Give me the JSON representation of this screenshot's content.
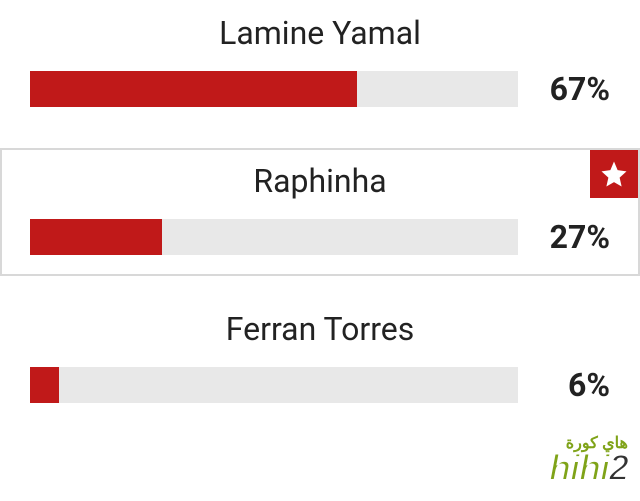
{
  "poll": {
    "bar_color": "#c01919",
    "track_color": "#e8e8e8",
    "highlight_border": "#d8d8d8",
    "text_color": "#222222",
    "options": [
      {
        "label": "Lamine Yamal",
        "percent_text": "67%",
        "percent_value": 67,
        "highlighted": false,
        "starred": false
      },
      {
        "label": "Raphinha",
        "percent_text": "27%",
        "percent_value": 27,
        "highlighted": true,
        "starred": true
      },
      {
        "label": "Ferran Torres",
        "percent_text": "6%",
        "percent_value": 6,
        "highlighted": false,
        "starred": false
      }
    ]
  },
  "watermark": {
    "arabic": "هاي كورة",
    "brand_main": "hihi",
    "brand_suffix": "2",
    "color": "#7fa318"
  }
}
